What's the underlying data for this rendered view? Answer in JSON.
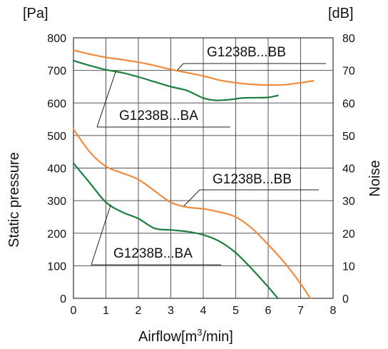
{
  "chart_data": {
    "type": "line",
    "xlabel": "Airflow[m3/min]",
    "xlabel_main": "Airflow[m",
    "xlabel_sup": "3",
    "xlabel_tail": "/min]",
    "ylabel": "Static pressure",
    "y2label": "Noise",
    "y_unit": "[Pa]",
    "y2_unit": "[dB]",
    "xlim": [
      0,
      8
    ],
    "ylim": [
      0,
      800
    ],
    "y2lim": [
      0,
      80
    ],
    "x_ticks": [
      "0",
      "1",
      "2",
      "3",
      "4",
      "5",
      "6",
      "7",
      "8"
    ],
    "y_ticks": [
      "0",
      "100",
      "200",
      "300",
      "400",
      "500",
      "600",
      "700",
      "800"
    ],
    "y2_ticks": [
      "0",
      "10",
      "20",
      "30",
      "40",
      "50",
      "60",
      "70",
      "80"
    ],
    "grid": true,
    "colors": {
      "BB": "#f08a3c",
      "BA": "#1e7e3e",
      "grid": "#555555",
      "text": "#111111"
    },
    "series": [
      {
        "name": "G1238B...BB",
        "axis": "noise",
        "color": "#f08a3c",
        "points": [
          [
            0,
            76.2
          ],
          [
            0.5,
            75
          ],
          [
            1,
            74
          ],
          [
            1.5,
            73.3
          ],
          [
            2,
            72.5
          ],
          [
            2.5,
            71.5
          ],
          [
            3,
            70.3
          ],
          [
            3.5,
            69.3
          ],
          [
            4,
            68.3
          ],
          [
            4.5,
            67
          ],
          [
            5,
            66.2
          ],
          [
            5.5,
            65.7
          ],
          [
            6,
            65.5
          ],
          [
            6.5,
            65.6
          ],
          [
            7,
            66.2
          ],
          [
            7.4,
            66.8
          ]
        ]
      },
      {
        "name": "G1238B...BA",
        "axis": "noise",
        "color": "#1e7e3e",
        "points": [
          [
            0,
            73
          ],
          [
            0.5,
            71.5
          ],
          [
            1,
            70.2
          ],
          [
            1.5,
            69.3
          ],
          [
            2,
            68
          ],
          [
            2.5,
            66.5
          ],
          [
            3,
            65
          ],
          [
            3.5,
            63.8
          ],
          [
            4,
            61.5
          ],
          [
            4.4,
            60.8
          ],
          [
            4.8,
            61
          ],
          [
            5.2,
            61.5
          ],
          [
            5.6,
            61.6
          ],
          [
            6,
            61.7
          ],
          [
            6.3,
            62.3
          ]
        ]
      },
      {
        "name": "G1238B...BB",
        "axis": "pressure",
        "color": "#f08a3c",
        "points": [
          [
            0,
            520
          ],
          [
            0.5,
            450
          ],
          [
            1,
            405
          ],
          [
            1.5,
            385
          ],
          [
            2,
            365
          ],
          [
            2.5,
            330
          ],
          [
            3,
            295
          ],
          [
            3.5,
            280
          ],
          [
            4,
            275
          ],
          [
            4.5,
            265
          ],
          [
            5,
            250
          ],
          [
            5.5,
            215
          ],
          [
            6,
            165
          ],
          [
            6.5,
            110
          ],
          [
            7,
            45
          ],
          [
            7.3,
            0
          ]
        ]
      },
      {
        "name": "G1238B...BA",
        "axis": "pressure",
        "color": "#1e7e3e",
        "points": [
          [
            0,
            415
          ],
          [
            0.5,
            355
          ],
          [
            1,
            295
          ],
          [
            1.5,
            265
          ],
          [
            2,
            245
          ],
          [
            2.5,
            215
          ],
          [
            3,
            210
          ],
          [
            3.5,
            205
          ],
          [
            4,
            195
          ],
          [
            4.5,
            175
          ],
          [
            5,
            140
          ],
          [
            5.5,
            90
          ],
          [
            6,
            35
          ],
          [
            6.3,
            0
          ]
        ]
      }
    ],
    "annotations": [
      {
        "text": "G1238B...BB",
        "target": "series-0"
      },
      {
        "text": "G1238B...BA",
        "target": "series-1"
      },
      {
        "text": "G1238B...BB",
        "target": "series-2"
      },
      {
        "text": "G1238B...BA",
        "target": "series-3"
      }
    ]
  }
}
